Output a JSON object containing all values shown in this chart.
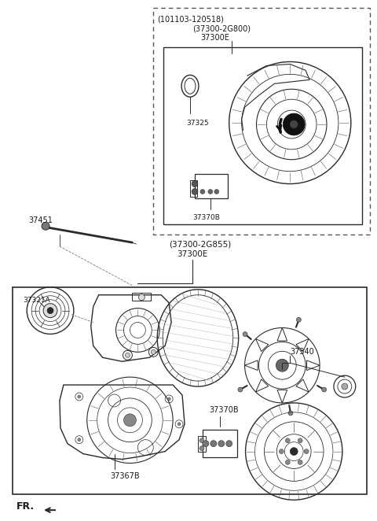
{
  "bg_color": "#ffffff",
  "line_color": "#2a2a2a",
  "text_color": "#1a1a1a",
  "fig_width": 4.8,
  "fig_height": 6.62,
  "dpi": 100,
  "labels": {
    "top_box_header1": "(101103-120518)",
    "top_box_header2": "(37300-2G800)",
    "top_box_header3": "37300E",
    "part_37325": "37325",
    "part_37370B_top": "37370B",
    "bolt_label": "37451",
    "bottom_header1": "(37300-2G855)",
    "bottom_header2": "37300E",
    "part_37321A": "37321A",
    "part_37340": "37340",
    "part_37370B_bot": "37370B",
    "part_37367B": "37367B",
    "fr_label": "FR."
  }
}
